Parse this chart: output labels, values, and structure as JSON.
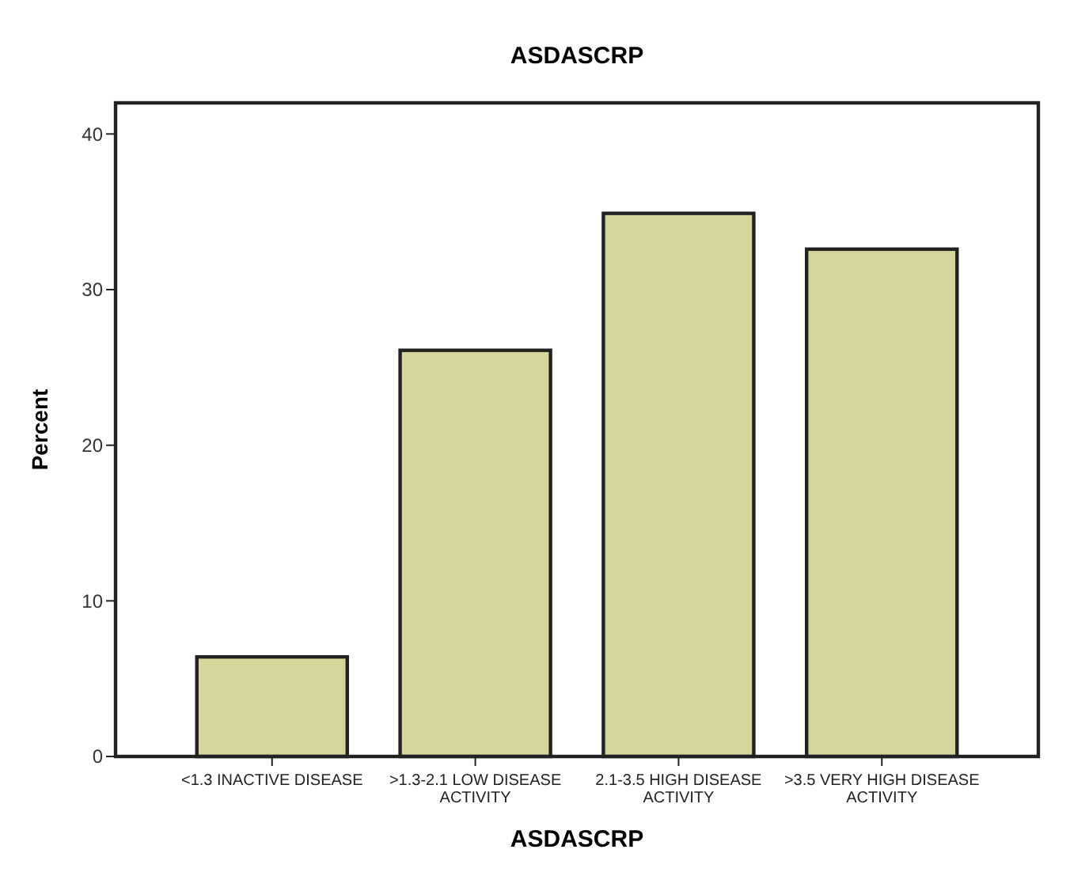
{
  "chart_data": {
    "type": "bar",
    "title": "ASDASCRP",
    "xlabel": "ASDASCRP",
    "ylabel": "Percent",
    "categories": [
      "<1.3 INACTIVE DISEASE",
      ">1.3-2.1 LOW DISEASE ACTIVITY",
      "2.1-3.5 HIGH DISEASE ACTIVITY",
      ">3.5 VERY HIGH DISEASE ACTIVITY"
    ],
    "values": [
      6.4,
      26.1,
      34.9,
      32.6
    ],
    "color": "#d6d59c",
    "ylim": [
      0,
      42
    ],
    "yticks": [
      0,
      10,
      20,
      30,
      40
    ],
    "grid": false
  }
}
